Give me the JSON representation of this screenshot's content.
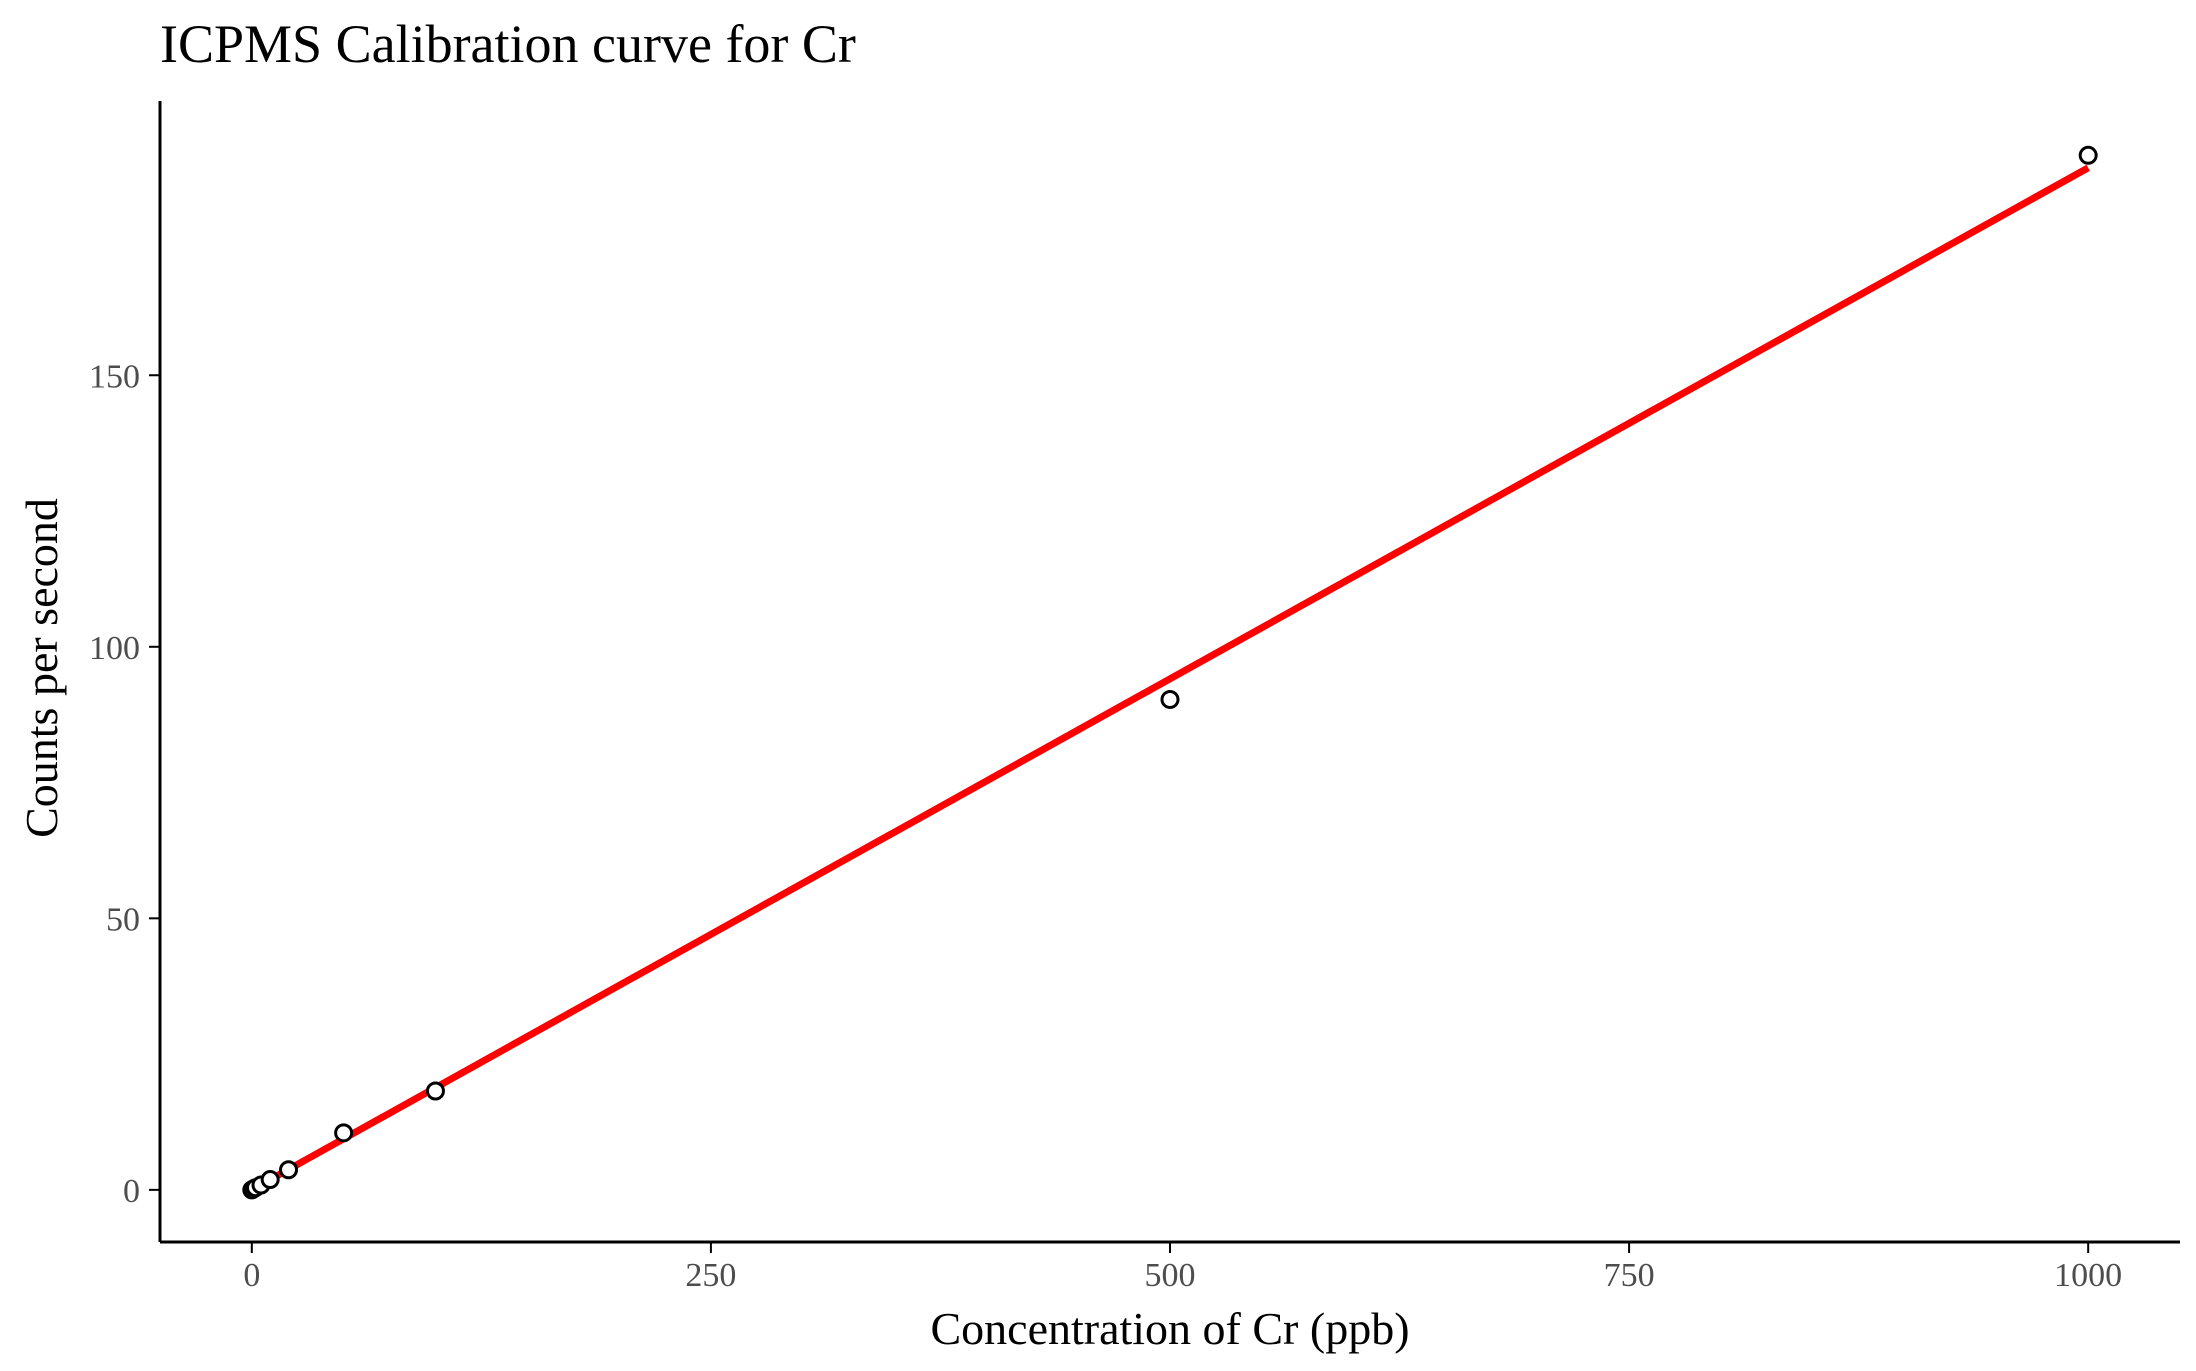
{
  "chart_data": {
    "type": "scatter",
    "title": "ICPMS Calibration curve for Cr",
    "xlabel": "Concentration of Cr (ppb)",
    "ylabel": "Counts per second",
    "xlim": [
      -50,
      1050
    ],
    "ylim": [
      -9.6,
      200.5
    ],
    "x_ticks": [
      0,
      250,
      500,
      750,
      1000
    ],
    "x_tick_labels": [
      "0",
      "250",
      "500",
      "750",
      "1000"
    ],
    "y_ticks": [
      0,
      50,
      100,
      150
    ],
    "y_tick_labels": [
      "0",
      "50",
      "100",
      "150"
    ],
    "grid": false,
    "legend": "none",
    "points": [
      {
        "x": 0,
        "y": 0.0
      },
      {
        "x": 1,
        "y": 0.2
      },
      {
        "x": 2,
        "y": 0.4
      },
      {
        "x": 5,
        "y": 0.9
      },
      {
        "x": 10,
        "y": 1.9
      },
      {
        "x": 20,
        "y": 3.7
      },
      {
        "x": 50,
        "y": 10.5
      },
      {
        "x": 100,
        "y": 18.2
      },
      {
        "x": 500,
        "y": 90.3
      },
      {
        "x": 1000,
        "y": 190.5
      }
    ],
    "fit_line": {
      "x": [
        0,
        1000
      ],
      "y": [
        0.0,
        188.2
      ]
    },
    "colors": {
      "points_stroke": "#000000",
      "points_fill": "#ffffff",
      "fit_line": "#ff0000",
      "axis": "#000000",
      "tick_label": "#4d4d4d"
    }
  }
}
